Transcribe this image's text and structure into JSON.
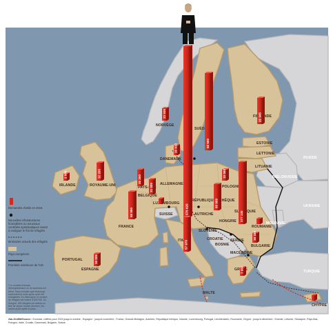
{
  "colors": {
    "sea": "#7f97af",
    "eu_land": "#d8c29a",
    "eu_side": "#b89a6a",
    "non_eu_land": "#d6d6d8",
    "non_eu_side": "#b5b5b8",
    "bar": "#d42a1f",
    "bar_dark": "#9e1a12",
    "route": "#3a2a22",
    "border": "#111111"
  },
  "countries": {
    "norvege": "NORVÈGE",
    "suede": "SUÈDE",
    "finlande": "FINLANDE",
    "estonie": "ESTONIE",
    "lettonie": "LETTONIE",
    "lituanie": "LITUANIE",
    "danemark": "DANEMARK",
    "irlande": "IRLANDE",
    "royaume_uni": "ROYAUME-UNI",
    "pays_bas": "PAYS-BAS",
    "belgique": "BELGIQUE",
    "luxembourg": "LUXEMBOURG",
    "allemagne": "ALLEMAGNE",
    "pologne": "POLOGNE",
    "rep_tcheque": "RÉPUBLIQUE TCHÈQUE",
    "slovaquie": "SLOVAQUIE",
    "autriche": "AUTRICHE",
    "hongrie": "HONGRIE",
    "france": "FRANCE",
    "suisse": "SUISSE",
    "italie": "ITALIE",
    "slovenie": "SLOVÉNIE",
    "croatie": "CROATIE",
    "serbie": "SERBIE",
    "bosnie": "BOSNIE",
    "roumanie": "ROUMANIE",
    "bulgarie": "BULGARIE",
    "macedoine": "MACÉDOINE",
    "grece": "GRÈCE",
    "portugal": "PORTUGAL",
    "espagne": "ESPAGNE",
    "malte": "MALTE",
    "chypre": "CHYPRE",
    "russie": "RUSSIE",
    "bielorussie": "BIÉLORUSSIE",
    "ukraine": "UKRAINE",
    "moldavie": "MOLDAVIE",
    "turquie": "TURQUIE"
  },
  "bars": {
    "allemagne": "576 620",
    "suede": "62 550",
    "hongrie": "177 135",
    "finlande": "22 945",
    "autriche": "68 989",
    "italie": "57 970",
    "france": "58 990",
    "royaume_uni": "32 205",
    "pays_bas": "35 260",
    "belgique": "31 025",
    "danemark": "16 910",
    "norvege": "23 930",
    "pologne": "10 050",
    "espagne": "10 025",
    "bulgarie": "18 105",
    "roumanie": "1 110",
    "grece": "7 655",
    "luxembourg": "1 900",
    "irlande": "2 880",
    "chypre": "1 900"
  },
  "legend": {
    "asylum": "Demandes d'asile en 2015",
    "controls": "Nouvelles infrastructures frontalières ou nouveaux contrôles systématiques visant à endiguer le flot de réfugiés",
    "routes": "Itinéraires actuels des réfugiés",
    "eu_countries": "Pays européens",
    "eu_borders": "Frontière extérieure de l'UE",
    "note": "* Le nombre d'ennuis d'enregistrement ou de doublons est élevé. Sans compter que beaucoup reprennent la route après avoir été enregistrés. En Allemagne, le nombre de réfugiés est estimé à 800 000. En Hongrie, 300 réfugiés ont obtenu un titre de séjour l'année dernière, les autres ayant quitté le pays."
  },
  "source": {
    "credit": "Zak-Graffiti/Source :",
    "text": "Eurostat, chiffres pour 2015 jusqu'à octobre ; Espagne : jusqu'à novembre ; France, Grande-Bretagne, Autriche, République tchèque, Islande, Luxembourg, Portugal, Liechtenstein, Roumanie, Chypre : jusqu'à décembre ; Estonie, Lettonie, Slovaquie, Pays-Bas, Pologne, Italie, Croatie, Danemark, Bulgarie, Suisse."
  }
}
